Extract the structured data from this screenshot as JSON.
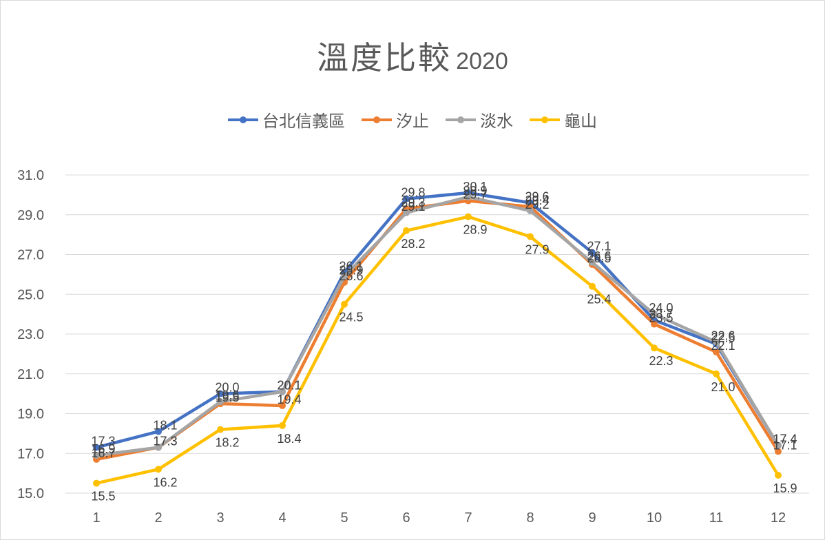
{
  "chart_data": {
    "type": "line",
    "title": "溫度比較",
    "title_suffix": "2020",
    "categories": [
      "1",
      "2",
      "3",
      "4",
      "5",
      "6",
      "7",
      "8",
      "9",
      "10",
      "11",
      "12"
    ],
    "ylim": [
      15,
      31
    ],
    "yticks": [
      "15.0",
      "17.0",
      "19.0",
      "21.0",
      "23.0",
      "25.0",
      "27.0",
      "29.0",
      "31.0"
    ],
    "grid": true,
    "legend_position": "top",
    "series": [
      {
        "name": "台北信義區",
        "color": "#4472C4",
        "values": [
          17.3,
          18.1,
          20.0,
          20.1,
          26.1,
          29.8,
          30.1,
          29.6,
          27.1,
          23.7,
          22.5,
          17.4
        ]
      },
      {
        "name": "汐止",
        "color": "#ED7D31",
        "values": [
          16.7,
          17.3,
          19.5,
          19.4,
          25.6,
          29.3,
          29.7,
          29.4,
          26.5,
          23.5,
          22.1,
          17.1
        ]
      },
      {
        "name": "淡水",
        "color": "#A5A5A5",
        "values": [
          16.9,
          17.3,
          19.6,
          20.1,
          25.9,
          29.1,
          29.9,
          29.2,
          26.6,
          24.0,
          22.6,
          17.4
        ]
      },
      {
        "name": "龜山",
        "color": "#FFC000",
        "values": [
          15.5,
          16.2,
          18.2,
          18.4,
          24.5,
          28.2,
          28.9,
          27.9,
          25.4,
          22.3,
          21.0,
          15.9
        ]
      }
    ]
  }
}
